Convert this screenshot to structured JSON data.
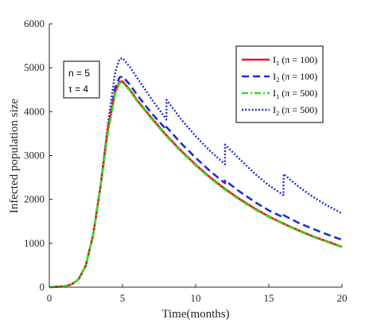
{
  "chart_data": {
    "type": "line",
    "xlabel": "Time(months)",
    "ylabel": "Infected population size",
    "xlim": [
      0,
      20
    ],
    "ylim": [
      0,
      6000
    ],
    "xticks": [
      0,
      5,
      10,
      15,
      20
    ],
    "yticks": [
      0,
      1000,
      2000,
      3000,
      4000,
      5000,
      6000
    ],
    "grid": false,
    "legend_position": "top-right",
    "annotation": [
      "n = 5",
      "τ = 4"
    ],
    "series": [
      {
        "name": "I1 (π = 100)",
        "label_main": "I",
        "label_sub": "1",
        "label_rest": " (π = 100)",
        "color": "#e8171b",
        "dash": "solid",
        "x": [
          0,
          1,
          1.5,
          2,
          2.5,
          3,
          3.5,
          4,
          4.5,
          4.8,
          5,
          5.5,
          6,
          7,
          8,
          9,
          10,
          11,
          12,
          13,
          14,
          15,
          16,
          17,
          18,
          19,
          20
        ],
        "y": [
          0,
          20,
          60,
          180,
          500,
          1200,
          2300,
          3600,
          4450,
          4680,
          4690,
          4500,
          4260,
          3850,
          3460,
          3110,
          2790,
          2500,
          2240,
          2010,
          1800,
          1610,
          1450,
          1300,
          1160,
          1040,
          920
        ]
      },
      {
        "name": "I2 (π = 100)",
        "label_main": "I",
        "label_sub": "2",
        "label_rest": " (π = 100)",
        "color": "#1c2fd4",
        "dash": "dashed",
        "x": [
          0,
          1,
          1.5,
          2,
          2.5,
          3,
          3.5,
          4,
          4.5,
          4.8,
          5,
          5.5,
          6,
          7,
          8,
          8.01,
          9,
          10,
          11,
          12,
          12.01,
          13,
          14,
          15,
          16,
          16.01,
          17,
          18,
          19,
          20
        ],
        "y": [
          0,
          20,
          60,
          180,
          500,
          1200,
          2300,
          3600,
          4550,
          4780,
          4800,
          4620,
          4380,
          3960,
          3590,
          3650,
          3280,
          2950,
          2640,
          2370,
          2430,
          2180,
          1950,
          1750,
          1590,
          1640,
          1470,
          1330,
          1200,
          1080
        ]
      },
      {
        "name": "I1 (π = 500)",
        "label_main": "I",
        "label_sub": "1",
        "label_rest": " (π = 500)",
        "color": "#2ee31f",
        "dash": "dashdot",
        "x": [
          0,
          1,
          1.5,
          2,
          2.5,
          3,
          3.5,
          4,
          4.5,
          4.8,
          5,
          5.5,
          6,
          7,
          8,
          9,
          10,
          11,
          12,
          13,
          14,
          15,
          16,
          17,
          18,
          19,
          20
        ],
        "y": [
          0,
          20,
          60,
          180,
          500,
          1200,
          2300,
          3500,
          4400,
          4650,
          4670,
          4480,
          4240,
          3830,
          3440,
          3090,
          2770,
          2480,
          2220,
          1990,
          1780,
          1600,
          1440,
          1290,
          1150,
          1030,
          910
        ]
      },
      {
        "name": "I2 (π = 500)",
        "label_main": "I",
        "label_sub": "2",
        "label_rest": " (π = 500)",
        "color": "#1c2fd4",
        "dash": "dotted",
        "x": [
          0,
          1,
          1.5,
          2,
          2.5,
          3,
          3.5,
          4,
          4.5,
          4.8,
          5,
          5.5,
          6,
          7,
          8,
          8.01,
          9,
          10,
          11,
          12,
          12.01,
          13,
          14,
          15,
          16,
          16.01,
          17,
          18,
          19,
          20
        ],
        "y": [
          0,
          20,
          60,
          180,
          500,
          1200,
          2300,
          3700,
          4900,
          5200,
          5220,
          5020,
          4770,
          4280,
          3820,
          4270,
          3830,
          3440,
          3100,
          2800,
          3250,
          2920,
          2600,
          2320,
          2100,
          2580,
          2300,
          2060,
          1860,
          1680
        ]
      }
    ]
  }
}
